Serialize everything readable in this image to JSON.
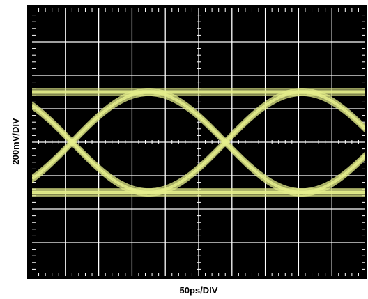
{
  "chart_data": {
    "type": "line",
    "title": "",
    "xlabel": "50ps/DIV",
    "ylabel": "200mV/DIV",
    "x_divisions": 10,
    "y_divisions": 8,
    "x_per_div_ps": 50,
    "y_per_div_mV": 200,
    "xlim_ps": [
      0,
      500
    ],
    "ylim_mV": [
      -800,
      800
    ],
    "grid": true,
    "legend": "none",
    "eye": {
      "high_level_mV": 300,
      "low_level_mV": -300,
      "crossing_times_ps": [
        60,
        290
      ],
      "crossing_level_mV": 0,
      "unit_interval_ps": 230,
      "trace_spread_mV": 40
    }
  },
  "colors": {
    "background": "#000000",
    "grid": "#ffffff",
    "trace": "#e6ef8c",
    "frame": "#000000"
  }
}
